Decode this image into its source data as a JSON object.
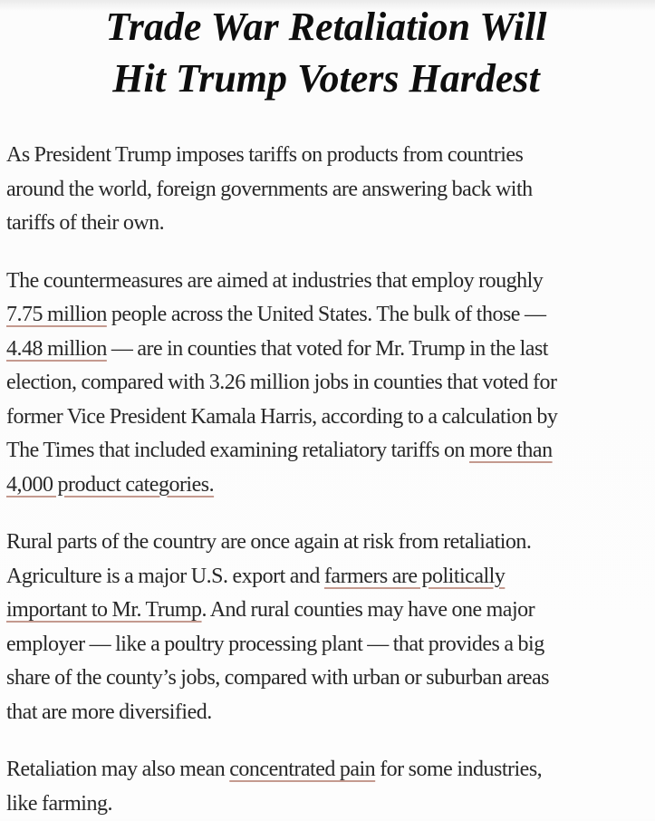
{
  "page": {
    "background_color": "#fcfcfc",
    "text_color": "#282828",
    "headline_color": "#0e0e0e",
    "link_underline_color": "#c49a8f"
  },
  "headline": {
    "lines": [
      "Trade War Retaliation Will",
      "Hit Trump Voters Hardest"
    ]
  },
  "article": {
    "paragraphs": [
      {
        "lines": [
          [
            {
              "t": "As President Trump imposes tariffs on products from countries"
            }
          ],
          [
            {
              "t": "around the world, foreign governments are answering back with"
            }
          ],
          [
            {
              "t": "tariffs of their own."
            }
          ]
        ]
      },
      {
        "lines": [
          [
            {
              "t": "The countermeasures are aimed at industries that employ roughly"
            }
          ],
          [
            {
              "t": "7.75 million",
              "link": true
            },
            {
              "t": " people across the United States. The bulk of those —"
            }
          ],
          [
            {
              "t": "4.48 million",
              "link": true
            },
            {
              "t": " — are in counties that voted for Mr. Trump in the last"
            }
          ],
          [
            {
              "t": "election, compared with 3.26 million jobs in counties that voted for"
            }
          ],
          [
            {
              "t": "former Vice President Kamala Harris, according to a calculation by"
            }
          ],
          [
            {
              "t": "The Times that included examining retaliatory tariffs on "
            },
            {
              "t": "more than",
              "link": true
            }
          ],
          [
            {
              "t": "4,000 product categories.",
              "link": true
            }
          ]
        ]
      },
      {
        "lines": [
          [
            {
              "t": "Rural parts of the country are once again at risk from retaliation."
            }
          ],
          [
            {
              "t": "Agriculture is a major U.S. export and "
            },
            {
              "t": "farmers are politically",
              "link": true
            }
          ],
          [
            {
              "t": "important to Mr. Trump",
              "link": true
            },
            {
              "t": ". And rural counties may have one major"
            }
          ],
          [
            {
              "t": "employer — like a poultry processing plant — that provides a big"
            }
          ],
          [
            {
              "t": "share of the county’s jobs, compared with urban or suburban areas"
            }
          ],
          [
            {
              "t": "that are more diversified."
            }
          ]
        ]
      },
      {
        "lines": [
          [
            {
              "t": "Retaliation may also mean "
            },
            {
              "t": "concentrated pain",
              "link": true
            },
            {
              "t": " for some industries,"
            }
          ],
          [
            {
              "t": "like farming."
            }
          ]
        ]
      }
    ]
  }
}
